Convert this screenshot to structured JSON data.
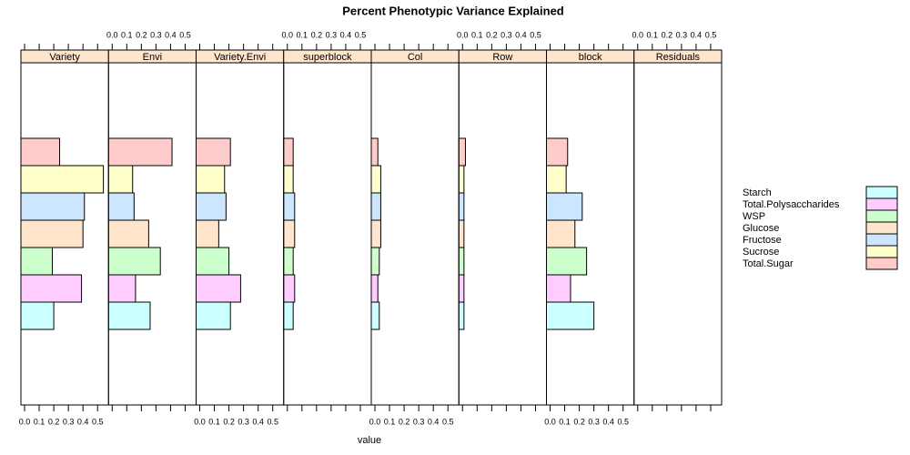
{
  "chart_data": {
    "type": "bar",
    "title": "Percent Phenotypic Variance Explained",
    "xlabel": "value",
    "categories": [
      "Variety",
      "Envi",
      "Variety.Envi",
      "superblock",
      "Col",
      "Row",
      "block",
      "Residuals"
    ],
    "xlim": [
      -0.025,
      0.575
    ],
    "xticks": [
      {
        "value": 0,
        "label": "0.0"
      },
      0.1,
      0.2,
      0.3,
      0.4,
      0.5
    ],
    "series": [
      {
        "name": "Starch",
        "color": "#ccffff",
        "values": [
          0.2,
          0.26,
          0.21,
          0.04,
          0.03,
          0.01,
          0.3,
          null
        ]
      },
      {
        "name": "Total.Polysaccharides",
        "color": "#ffccff",
        "values": [
          0.39,
          0.16,
          0.28,
          0.05,
          0.02,
          0.01,
          0.14,
          null
        ]
      },
      {
        "name": "WSP",
        "color": "#ccffcc",
        "values": [
          0.19,
          0.33,
          0.2,
          0.04,
          0.03,
          0.01,
          0.25,
          null
        ]
      },
      {
        "name": "Glucose",
        "color": "#ffe5cc",
        "values": [
          0.4,
          0.25,
          0.13,
          0.05,
          0.04,
          0.01,
          0.17,
          null
        ]
      },
      {
        "name": "Fructose",
        "color": "#cce6ff",
        "values": [
          0.41,
          0.15,
          0.18,
          0.05,
          0.04,
          0.01,
          0.22,
          null
        ]
      },
      {
        "name": "Sucrose",
        "color": "#ffffcc",
        "values": [
          0.54,
          0.14,
          0.17,
          0.04,
          0.04,
          0.01,
          0.11,
          null
        ]
      },
      {
        "name": "Total.Sugar",
        "color": "#ffcccc",
        "values": [
          0.24,
          0.41,
          0.21,
          0.04,
          0.02,
          0.02,
          0.12,
          null
        ]
      }
    ]
  }
}
